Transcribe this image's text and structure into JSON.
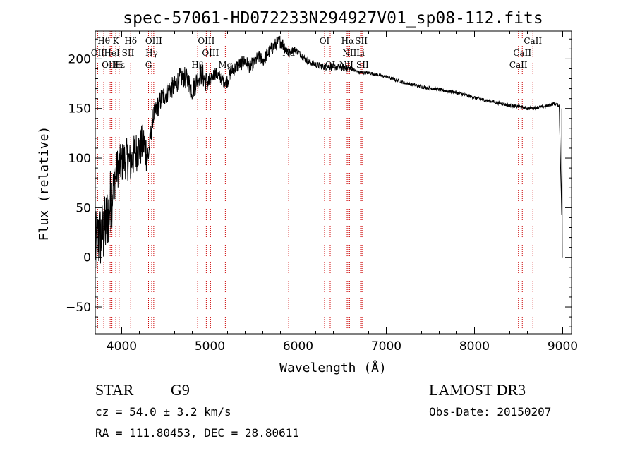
{
  "chart_data": {
    "type": "line",
    "title": "spec-57061-HD072233N294927V01_sp08-112.fits",
    "xlabel": "Wavelength (Å)",
    "ylabel": "Flux (relative)",
    "xlim": [
      3700,
      9100
    ],
    "ylim": [
      -77,
      228
    ],
    "x_ticks": [
      4000,
      5000,
      6000,
      7000,
      8000,
      9000
    ],
    "y_ticks": [
      -50,
      0,
      50,
      100,
      150,
      200
    ],
    "grid": false,
    "series": [
      {
        "name": "spectrum",
        "x": [
          3700,
          3750,
          3800,
          3850,
          3900,
          3950,
          4000,
          4050,
          4100,
          4150,
          4200,
          4250,
          4300,
          4350,
          4400,
          4450,
          4500,
          4550,
          4600,
          4650,
          4700,
          4750,
          4800,
          4850,
          4900,
          4950,
          5000,
          5050,
          5100,
          5150,
          5200,
          5250,
          5300,
          5350,
          5400,
          5450,
          5500,
          5550,
          5600,
          5650,
          5700,
          5750,
          5800,
          5850,
          5900,
          5950,
          6000,
          6100,
          6200,
          6300,
          6400,
          6500,
          6600,
          6700,
          6800,
          6900,
          7000,
          7200,
          7400,
          7600,
          7800,
          8000,
          8200,
          8400,
          8500,
          8600,
          8700,
          8800,
          8900,
          8960,
          9000
        ],
        "y": [
          10,
          20,
          25,
          45,
          70,
          90,
          95,
          100,
          95,
          105,
          110,
          115,
          100,
          140,
          150,
          160,
          165,
          170,
          172,
          180,
          182,
          178,
          168,
          178,
          185,
          178,
          175,
          186,
          183,
          178,
          178,
          188,
          192,
          195,
          198,
          192,
          196,
          202,
          198,
          205,
          210,
          215,
          218,
          212,
          206,
          210,
          207,
          198,
          194,
          192,
          192,
          191,
          190,
          186,
          186,
          184,
          182,
          176,
          172,
          169,
          166,
          161,
          157,
          153,
          152,
          150,
          151,
          152,
          155,
          153,
          0
        ]
      }
    ],
    "spectral_lines": [
      {
        "label": "Hθ",
        "wavelength": 3797,
        "row": 1
      },
      {
        "label": "K",
        "wavelength": 3933,
        "row": 1
      },
      {
        "label": "Hδ",
        "wavelength": 4102,
        "row": 1
      },
      {
        "label": "OIII",
        "wavelength": 4363,
        "row": 1
      },
      {
        "label": "OIII",
        "wavelength": 4959,
        "row": 1
      },
      {
        "label": "OI",
        "wavelength": 6300,
        "row": 1
      },
      {
        "label": "Hα",
        "wavelength": 6563,
        "row": 1
      },
      {
        "label": "SII",
        "wavelength": 6717,
        "row": 1
      },
      {
        "label": "CaII",
        "wavelength": 8662,
        "row": 1
      },
      {
        "label": "OII",
        "wavelength": 3727,
        "row": 2
      },
      {
        "label": "HeI",
        "wavelength": 3889,
        "row": 2
      },
      {
        "label": "SII",
        "wavelength": 4072,
        "row": 2
      },
      {
        "label": "Hγ",
        "wavelength": 4340,
        "row": 2
      },
      {
        "label": "OIII",
        "wavelength": 5007,
        "row": 2
      },
      {
        "label": "NII",
        "wavelength": 6583,
        "row": 2
      },
      {
        "label": "Li",
        "wavelength": 6708,
        "row": 2
      },
      {
        "label": "Na",
        "wavelength": 5893,
        "row": 2
      },
      {
        "label": "CaII",
        "wavelength": 8542,
        "row": 2
      },
      {
        "label": "OIII",
        "wavelength": 3869,
        "row": 3
      },
      {
        "label": "Hε",
        "wavelength": 3970,
        "row": 3
      },
      {
        "label": "H",
        "wavelength": 3969,
        "row": 3
      },
      {
        "label": "G",
        "wavelength": 4304,
        "row": 3
      },
      {
        "label": "Hβ",
        "wavelength": 4861,
        "row": 3
      },
      {
        "label": "Mg",
        "wavelength": 5175,
        "row": 3
      },
      {
        "label": "OI",
        "wavelength": 6364,
        "row": 3
      },
      {
        "label": "NII",
        "wavelength": 6548,
        "row": 3
      },
      {
        "label": "SII",
        "wavelength": 6731,
        "row": 3
      },
      {
        "label": "CaII",
        "wavelength": 8498,
        "row": 3
      }
    ]
  },
  "info": {
    "object_class": "STAR",
    "subclass": "G9",
    "survey": "LAMOST DR3",
    "cz_line": "cz = 54.0 ± 3.2 km/s",
    "obs_date": "Obs-Date: 20150207",
    "coords": "RA = 111.80453, DEC =  28.80611"
  },
  "colors": {
    "spectrum": "#000000",
    "line_marker": "#cc0000",
    "frame": "#000000"
  }
}
